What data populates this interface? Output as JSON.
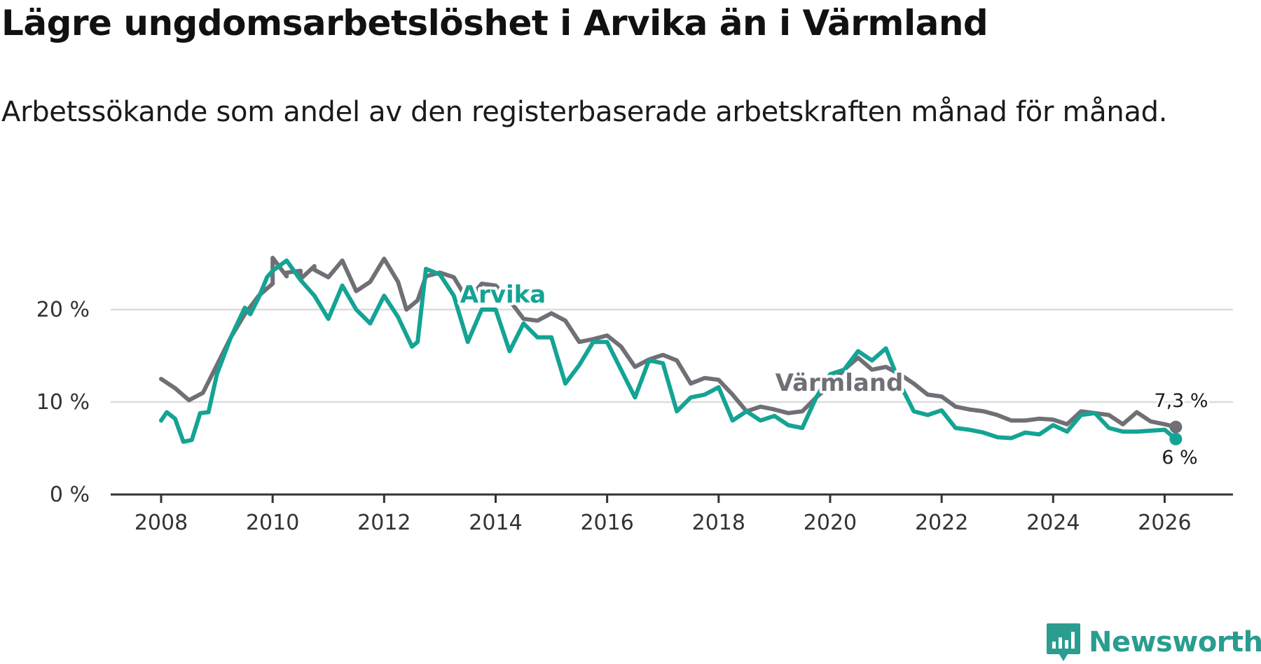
{
  "title": "Lägre ungdomsarbetslöshet i Arvika än i Värmland",
  "subtitle": "Arbetssökande som andel av den registerbaserade arbetskraften månad för månad.",
  "brand": {
    "name": "Newsworthy",
    "icon": "newsworthy-logo-icon"
  },
  "colors": {
    "arvika": "#14a394",
    "varmland": "#706f75",
    "grid": "#dcdcdc",
    "axis": "#333333"
  },
  "chart_data": {
    "type": "line",
    "title": "Lägre ungdomsarbetslöshet i Arvika än i Värmland",
    "xlabel": "",
    "ylabel": "",
    "xlim": [
      2008,
      2027.1
    ],
    "ylim": [
      0,
      26
    ],
    "x_ticks": [
      2008,
      2010,
      2012,
      2014,
      2016,
      2018,
      2020,
      2022,
      2024,
      2026
    ],
    "x_tick_labels": [
      "2008",
      "2010",
      "2012",
      "2014",
      "2016",
      "2018",
      "2020",
      "2022",
      "2024",
      "2026"
    ],
    "y_ticks": [
      0,
      10,
      20
    ],
    "y_tick_labels": [
      "0 %",
      "10 %",
      "20 %"
    ],
    "series": [
      {
        "name": "Värmland",
        "label": "Värmland",
        "end_label": "7,3 %",
        "points": [
          [
            2008.0,
            12.5
          ],
          [
            2008.25,
            11.5
          ],
          [
            2008.5,
            10.2
          ],
          [
            2008.75,
            11.0
          ],
          [
            2009.0,
            14.0
          ],
          [
            2009.25,
            17.0
          ],
          [
            2009.5,
            19.5
          ],
          [
            2009.75,
            21.5
          ],
          [
            2010.0,
            22.8
          ],
          [
            2010.25,
            23.6
          ],
          [
            2010.5,
            24.2
          ],
          [
            2010.75,
            24.7
          ],
          [
            2010.0,
            25.6
          ],
          [
            2010.25,
            24.0
          ],
          [
            2010.5,
            23.3
          ],
          [
            2010.75,
            24.3
          ],
          [
            2011.0,
            23.5
          ],
          [
            2011.25,
            25.3
          ],
          [
            2011.5,
            22.0
          ],
          [
            2011.75,
            23.0
          ],
          [
            2012.0,
            25.5
          ],
          [
            2012.25,
            23.0
          ],
          [
            2012.4,
            20.0
          ],
          [
            2012.6,
            21.0
          ],
          [
            2012.75,
            23.6
          ],
          [
            2013.0,
            24.0
          ],
          [
            2013.25,
            23.5
          ],
          [
            2013.5,
            21.0
          ],
          [
            2013.75,
            22.8
          ],
          [
            2014.0,
            22.6
          ],
          [
            2014.25,
            21.0
          ],
          [
            2014.5,
            19.0
          ],
          [
            2014.75,
            18.8
          ],
          [
            2015.0,
            19.6
          ],
          [
            2015.25,
            18.8
          ],
          [
            2015.5,
            16.5
          ],
          [
            2015.75,
            16.8
          ],
          [
            2016.0,
            17.2
          ],
          [
            2016.25,
            16.0
          ],
          [
            2016.5,
            13.8
          ],
          [
            2016.75,
            14.6
          ],
          [
            2017.0,
            15.1
          ],
          [
            2017.25,
            14.5
          ],
          [
            2017.5,
            12.0
          ],
          [
            2017.75,
            12.6
          ],
          [
            2018.0,
            12.4
          ],
          [
            2018.25,
            10.8
          ],
          [
            2018.5,
            9.0
          ],
          [
            2018.75,
            9.5
          ],
          [
            2019.0,
            9.2
          ],
          [
            2019.25,
            8.8
          ],
          [
            2019.5,
            9.0
          ],
          [
            2019.75,
            10.5
          ],
          [
            2020.0,
            11.8
          ],
          [
            2020.25,
            13.5
          ],
          [
            2020.5,
            14.8
          ],
          [
            2020.75,
            13.5
          ],
          [
            2021.0,
            13.8
          ],
          [
            2021.25,
            13.0
          ],
          [
            2021.5,
            12.0
          ],
          [
            2021.75,
            10.8
          ],
          [
            2022.0,
            10.6
          ],
          [
            2022.25,
            9.5
          ],
          [
            2022.5,
            9.2
          ],
          [
            2022.75,
            9.0
          ],
          [
            2023.0,
            8.6
          ],
          [
            2023.25,
            8.0
          ],
          [
            2023.5,
            8.0
          ],
          [
            2023.75,
            8.2
          ],
          [
            2024.0,
            8.1
          ],
          [
            2024.25,
            7.6
          ],
          [
            2024.5,
            9.0
          ],
          [
            2024.75,
            8.8
          ],
          [
            2025.0,
            8.6
          ],
          [
            2025.25,
            7.6
          ],
          [
            2025.5,
            8.9
          ],
          [
            2025.75,
            7.9
          ],
          [
            2026.0,
            7.6
          ],
          [
            2026.2,
            7.3
          ]
        ]
      },
      {
        "name": "Arvika",
        "label": "Arvika",
        "end_label": "6 %",
        "points": [
          [
            2008.0,
            8.0
          ],
          [
            2008.1,
            8.9
          ],
          [
            2008.25,
            8.2
          ],
          [
            2008.4,
            5.7
          ],
          [
            2008.55,
            5.9
          ],
          [
            2008.7,
            8.8
          ],
          [
            2008.85,
            8.9
          ],
          [
            2009.0,
            13.0
          ],
          [
            2009.25,
            17.0
          ],
          [
            2009.5,
            20.2
          ],
          [
            2009.6,
            19.5
          ],
          [
            2009.75,
            21.3
          ],
          [
            2009.9,
            23.5
          ],
          [
            2010.0,
            24.2
          ],
          [
            2010.25,
            25.3
          ],
          [
            2010.5,
            23.2
          ],
          [
            2010.75,
            21.5
          ],
          [
            2011.0,
            19.0
          ],
          [
            2011.25,
            22.6
          ],
          [
            2011.5,
            20.0
          ],
          [
            2011.75,
            18.5
          ],
          [
            2012.0,
            21.5
          ],
          [
            2012.25,
            19.2
          ],
          [
            2012.5,
            16.0
          ],
          [
            2012.6,
            16.5
          ],
          [
            2012.75,
            24.4
          ],
          [
            2013.0,
            23.8
          ],
          [
            2013.25,
            21.5
          ],
          [
            2013.5,
            16.5
          ],
          [
            2013.75,
            20.0
          ],
          [
            2014.0,
            20.0
          ],
          [
            2014.25,
            15.5
          ],
          [
            2014.5,
            18.5
          ],
          [
            2014.75,
            17.0
          ],
          [
            2015.0,
            17.0
          ],
          [
            2015.25,
            12.0
          ],
          [
            2015.5,
            14.0
          ],
          [
            2015.75,
            16.5
          ],
          [
            2016.0,
            16.5
          ],
          [
            2016.25,
            13.5
          ],
          [
            2016.5,
            10.5
          ],
          [
            2016.75,
            14.5
          ],
          [
            2017.0,
            14.2
          ],
          [
            2017.25,
            9.0
          ],
          [
            2017.5,
            10.5
          ],
          [
            2017.75,
            10.8
          ],
          [
            2018.0,
            11.6
          ],
          [
            2018.25,
            8.0
          ],
          [
            2018.5,
            9.0
          ],
          [
            2018.75,
            8.0
          ],
          [
            2019.0,
            8.5
          ],
          [
            2019.25,
            7.5
          ],
          [
            2019.5,
            7.2
          ],
          [
            2019.75,
            10.5
          ],
          [
            2020.0,
            13.0
          ],
          [
            2020.25,
            13.5
          ],
          [
            2020.5,
            15.5
          ],
          [
            2020.75,
            14.5
          ],
          [
            2021.0,
            15.8
          ],
          [
            2021.25,
            12.0
          ],
          [
            2021.5,
            9.0
          ],
          [
            2021.75,
            8.6
          ],
          [
            2022.0,
            9.1
          ],
          [
            2022.25,
            7.2
          ],
          [
            2022.5,
            7.0
          ],
          [
            2022.75,
            6.7
          ],
          [
            2023.0,
            6.2
          ],
          [
            2023.25,
            6.1
          ],
          [
            2023.5,
            6.7
          ],
          [
            2023.75,
            6.5
          ],
          [
            2024.0,
            7.5
          ],
          [
            2024.25,
            6.8
          ],
          [
            2024.5,
            8.6
          ],
          [
            2024.75,
            8.8
          ],
          [
            2025.0,
            7.2
          ],
          [
            2025.25,
            6.8
          ],
          [
            2025.5,
            6.8
          ],
          [
            2025.75,
            6.9
          ],
          [
            2026.0,
            7.0
          ],
          [
            2026.2,
            6.0
          ]
        ]
      }
    ]
  }
}
